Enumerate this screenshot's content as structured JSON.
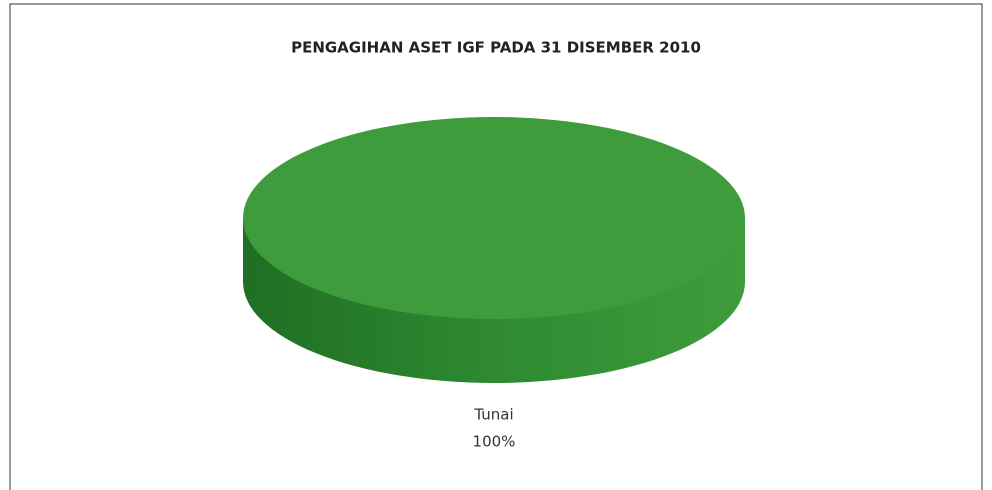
{
  "chart_data": {
    "type": "pie",
    "title": "PENGAGIHAN ASET IGF PADA 31 DISEMBER 2010",
    "categories": [
      "Tunai"
    ],
    "values": [
      100
    ],
    "value_labels": [
      "100%"
    ],
    "colors": [
      "#3f9c3c"
    ]
  }
}
